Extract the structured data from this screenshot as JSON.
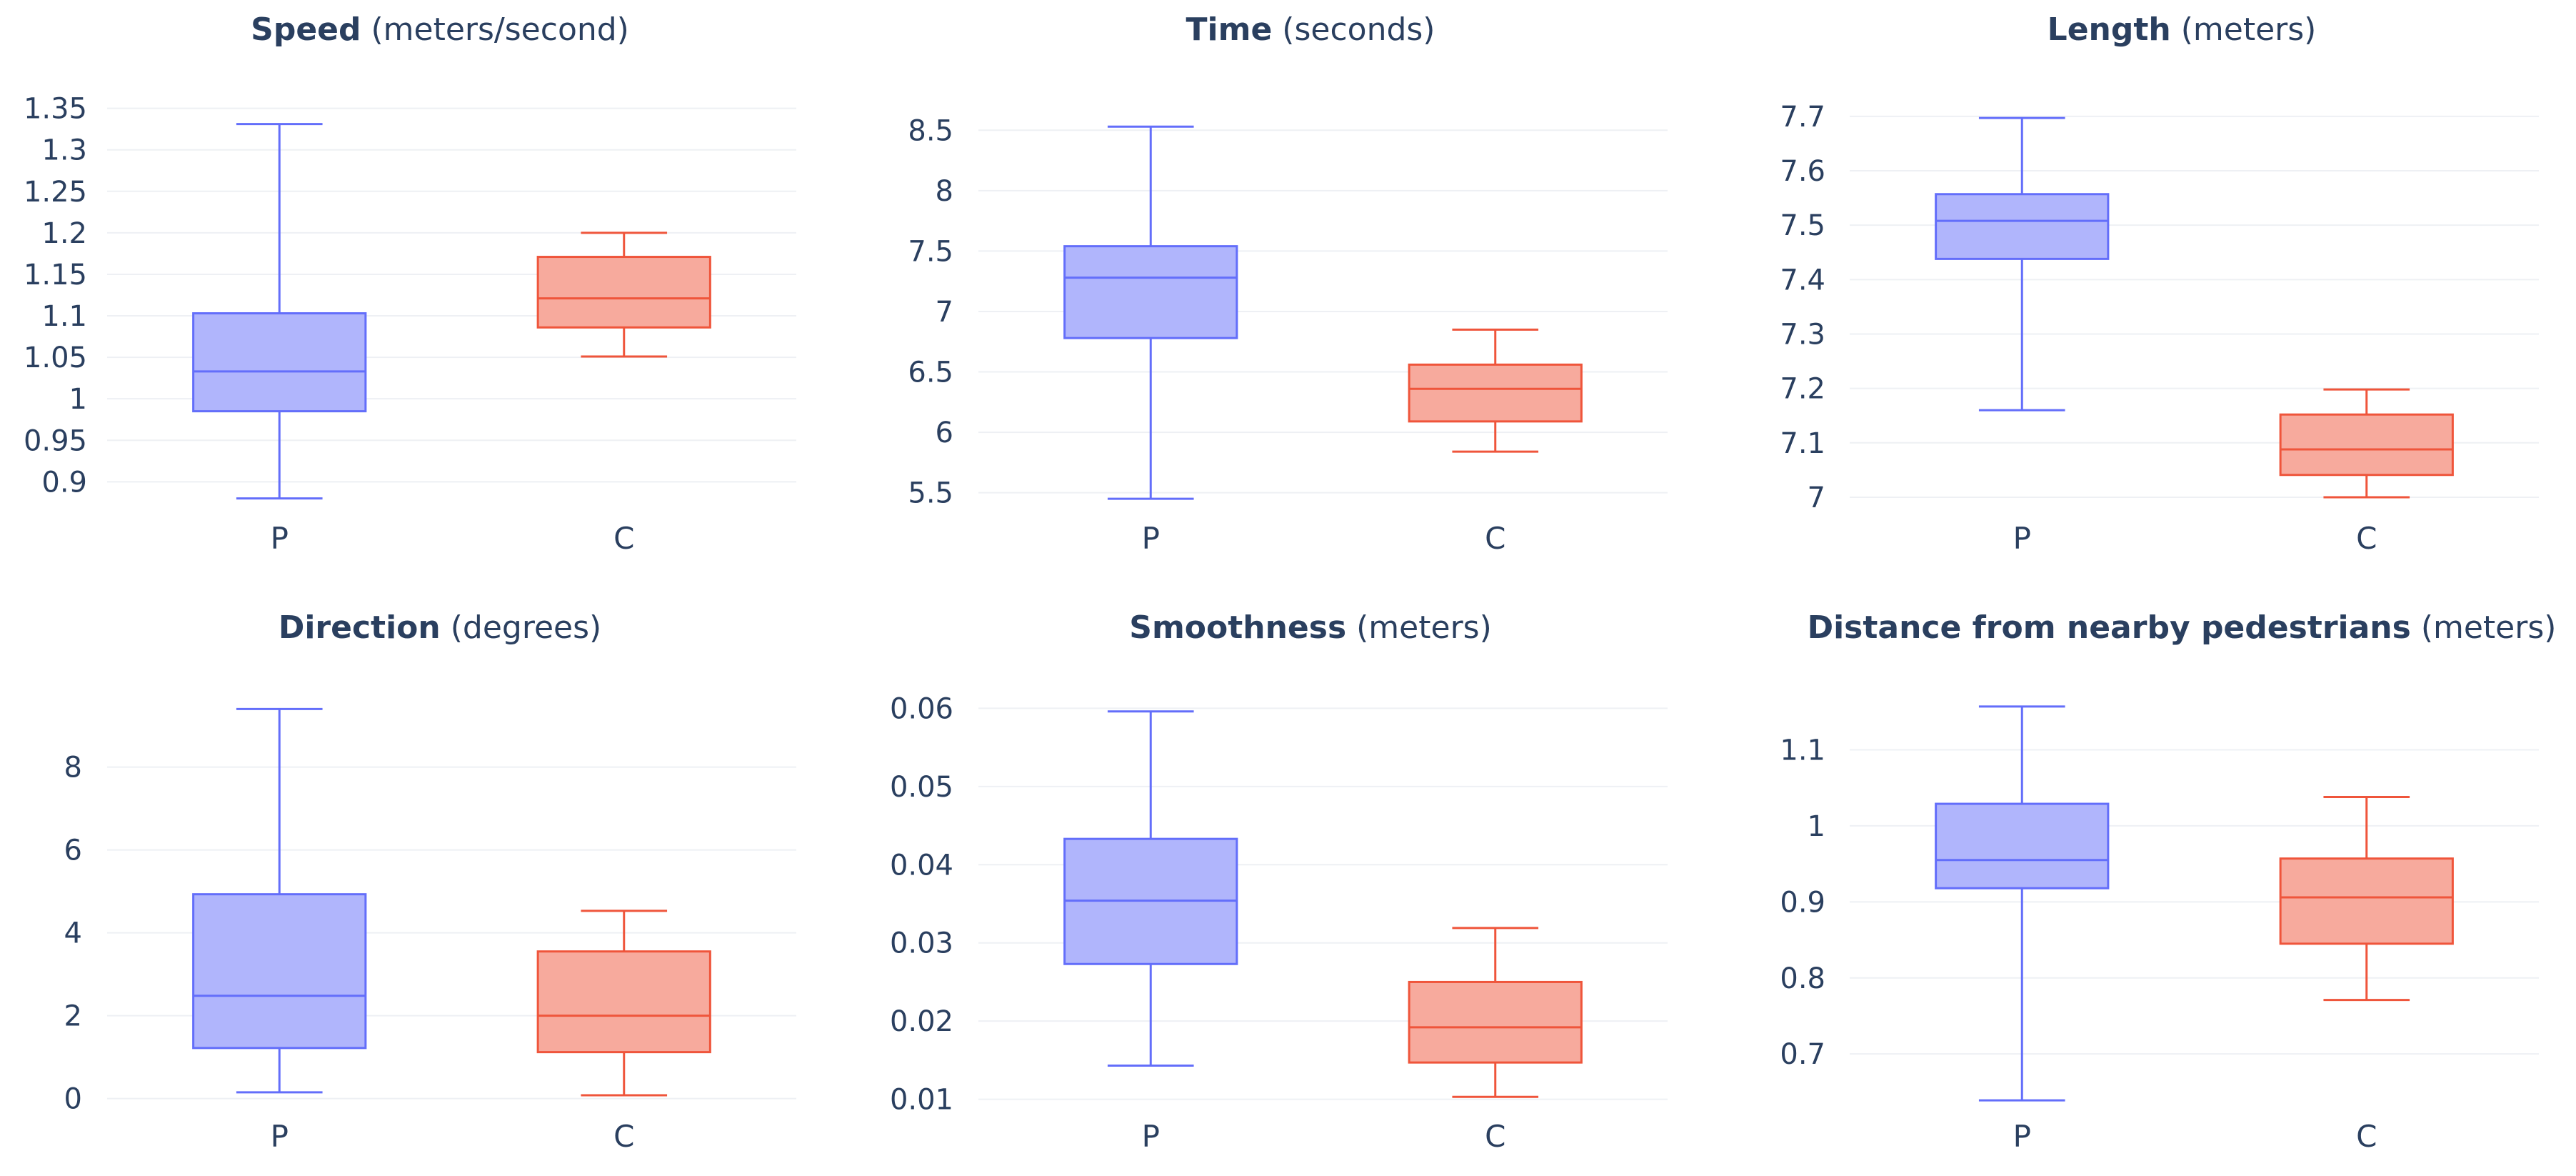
{
  "colors": {
    "p_line": "#636efa",
    "p_fill": "#b0b5fc",
    "c_line": "#ef553b",
    "c_fill": "#f7aa9d",
    "grid": "#eef0f4",
    "text": "#2a3f5f"
  },
  "chart_data": [
    {
      "type": "box",
      "title": "Speed",
      "unit": "(meters/second)",
      "categories": [
        "P",
        "C"
      ],
      "yticks": [
        "0.9",
        "0.95",
        "1",
        "1.05",
        "1.1",
        "1.15",
        "1.2",
        "1.25",
        "1.3",
        "1.35"
      ],
      "ylim": [
        0.865,
        1.36
      ],
      "series": [
        {
          "name": "P",
          "min": 0.88,
          "q1": 0.985,
          "median": 1.033,
          "q3": 1.103,
          "max": 1.331
        },
        {
          "name": "C",
          "min": 1.051,
          "q1": 1.086,
          "median": 1.121,
          "q3": 1.171,
          "max": 1.2
        }
      ]
    },
    {
      "type": "box",
      "title": "Time",
      "unit": "(seconds)",
      "categories": [
        "P",
        "C"
      ],
      "yticks": [
        "5.5",
        "6",
        "6.5",
        "7",
        "7.5",
        "8",
        "8.5"
      ],
      "ylim": [
        5.35,
        8.75
      ],
      "series": [
        {
          "name": "P",
          "min": 5.45,
          "q1": 6.78,
          "median": 7.28,
          "q3": 7.54,
          "max": 8.53
        },
        {
          "name": "C",
          "min": 5.84,
          "q1": 6.09,
          "median": 6.36,
          "q3": 6.56,
          "max": 6.85
        }
      ]
    },
    {
      "type": "box",
      "title": "Length",
      "unit": "(meters)",
      "categories": [
        "P",
        "C"
      ],
      "yticks": [
        "7",
        "7.1",
        "7.2",
        "7.3",
        "7.4",
        "7.5",
        "7.6",
        "7.7"
      ],
      "ylim": [
        6.975,
        7.73
      ],
      "series": [
        {
          "name": "P",
          "min": 7.16,
          "q1": 7.438,
          "median": 7.508,
          "q3": 7.557,
          "max": 7.697
        },
        {
          "name": "C",
          "min": 7.0,
          "q1": 7.041,
          "median": 7.088,
          "q3": 7.152,
          "max": 7.198
        }
      ]
    },
    {
      "type": "box",
      "title": "Direction",
      "unit": "(degrees)",
      "categories": [
        "P",
        "C"
      ],
      "yticks": [
        "0",
        "2",
        "4",
        "6",
        "8"
      ],
      "ylim": [
        -0.3,
        9.7
      ],
      "series": [
        {
          "name": "P",
          "min": 0.15,
          "q1": 1.22,
          "median": 2.48,
          "q3": 4.93,
          "max": 9.4
        },
        {
          "name": "C",
          "min": 0.08,
          "q1": 1.12,
          "median": 2.0,
          "q3": 3.55,
          "max": 4.53
        }
      ]
    },
    {
      "type": "box",
      "title": "Smoothness",
      "unit": "(meters)",
      "categories": [
        "P",
        "C"
      ],
      "yticks": [
        "0.01",
        "0.02",
        "0.03",
        "0.04",
        "0.05",
        "0.06"
      ],
      "ylim": [
        0.0085,
        0.0615
      ],
      "series": [
        {
          "name": "P",
          "min": 0.0143,
          "q1": 0.0273,
          "median": 0.0354,
          "q3": 0.0433,
          "max": 0.0596
        },
        {
          "name": "C",
          "min": 0.0103,
          "q1": 0.0147,
          "median": 0.0192,
          "q3": 0.025,
          "max": 0.0319
        }
      ]
    },
    {
      "type": "box",
      "title": "Distance from nearby pedestrians",
      "unit": "(meters)",
      "categories": [
        "P",
        "C"
      ],
      "yticks": [
        "0.7",
        "0.8",
        "0.9",
        "1",
        "1.1"
      ],
      "ylim": [
        0.625,
        1.17
      ],
      "series": [
        {
          "name": "P",
          "min": 0.639,
          "q1": 0.918,
          "median": 0.955,
          "q3": 1.029,
          "max": 1.157
        },
        {
          "name": "C",
          "min": 0.771,
          "q1": 0.845,
          "median": 0.906,
          "q3": 0.957,
          "max": 1.038
        }
      ]
    }
  ]
}
